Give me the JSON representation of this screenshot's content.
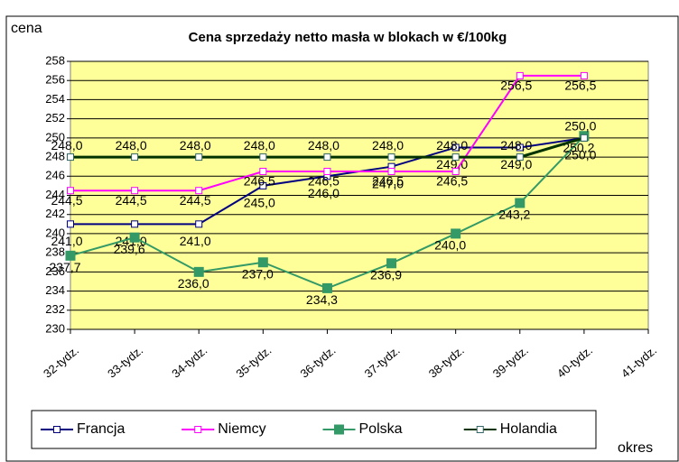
{
  "chart_data": {
    "type": "line",
    "title": "Cena sprzedaży netto masła w blokach w €/100kg",
    "y_label": "cena",
    "x_label": "okres",
    "categories": [
      "32-tydz.",
      "33-tydz.",
      "34-tydz.",
      "35-tydz.",
      "36-tydz.",
      "37-tydz.",
      "38-tydz.",
      "39-tydz.",
      "40-tydz.",
      "41-tydz."
    ],
    "ylim": [
      230,
      258
    ],
    "yticks": [
      230,
      232,
      234,
      236,
      238,
      240,
      242,
      244,
      246,
      248,
      250,
      252,
      254,
      256,
      258
    ],
    "grid": true,
    "legend": "bottom",
    "series": [
      {
        "name": "Francja",
        "color": "#000080",
        "marker": "hollow",
        "values": [
          241.0,
          241.0,
          241.0,
          245.0,
          246.0,
          247.0,
          249.0,
          249.0,
          250.0,
          null
        ],
        "value_labels": [
          "241,0",
          "241,0",
          "241,0",
          "245,0",
          "246,0",
          "247,0",
          "249,0",
          "249,0",
          "250,0",
          null
        ]
      },
      {
        "name": "Niemcy",
        "color": "#ff00ff",
        "marker": "hollow",
        "values": [
          244.5,
          244.5,
          244.5,
          246.5,
          246.5,
          246.5,
          246.5,
          256.5,
          256.5,
          null
        ],
        "value_labels": [
          "244,5",
          "244,5",
          "244,5",
          "246,5",
          "246,5",
          "246,5",
          "246,5",
          "256,5",
          "256,5",
          null
        ]
      },
      {
        "name": "Polska",
        "color": "#339966",
        "marker": "filled",
        "values": [
          237.7,
          239.6,
          236.0,
          237.0,
          234.3,
          236.9,
          240.0,
          243.2,
          250.2,
          null
        ],
        "value_labels": [
          "237,7",
          "239,6",
          "236,0",
          "237,0",
          "234,3",
          "236,9",
          "240,0",
          "243,2",
          "250,2",
          null
        ]
      },
      {
        "name": "Holandia",
        "color": "#003300",
        "marker_color": "#336666",
        "marker": "hollow",
        "values": [
          248.0,
          248.0,
          248.0,
          248.0,
          248.0,
          248.0,
          248.0,
          248.0,
          250.0,
          null
        ],
        "value_labels": [
          "248,0",
          "248,0",
          "248,0",
          "248,0",
          "248,0",
          "248,0",
          "248,0",
          "248,0",
          "250,0",
          null
        ]
      }
    ]
  }
}
